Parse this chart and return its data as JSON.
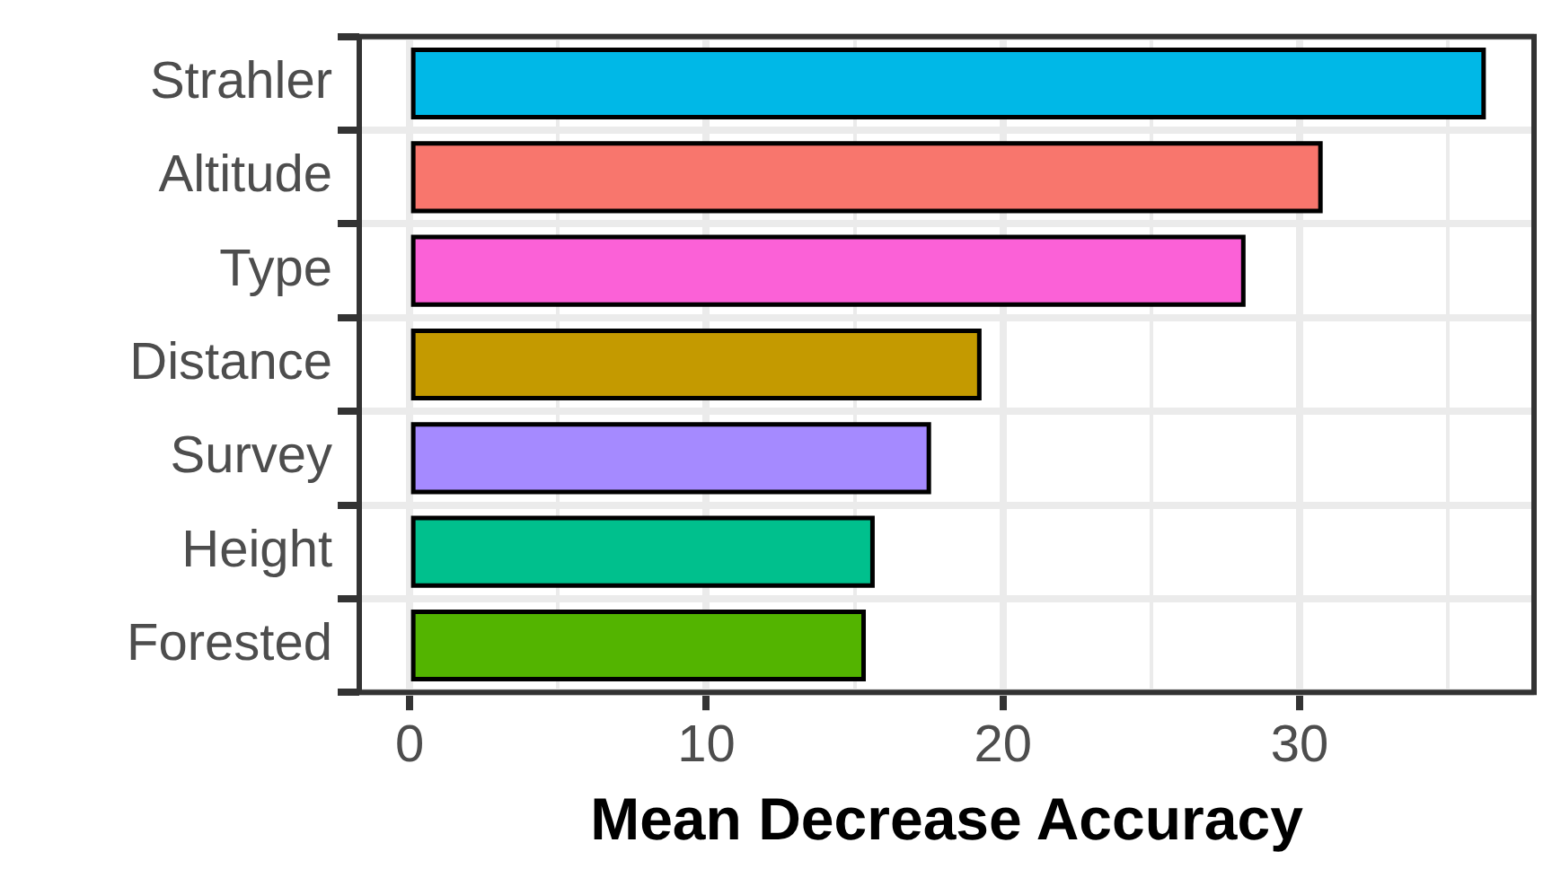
{
  "chart_data": {
    "type": "bar",
    "orientation": "horizontal",
    "xlabel": "Mean Decrease Accuracy",
    "categories": [
      "Strahler",
      "Altitude",
      "Type",
      "Distance",
      "Survey",
      "Height",
      "Forested"
    ],
    "values": [
      36.2,
      30.7,
      28.1,
      19.2,
      17.5,
      15.6,
      15.3
    ],
    "colors": [
      "#00b8e7",
      "#f8766d",
      "#fb61d7",
      "#c49a00",
      "#a58aff",
      "#00c08d",
      "#53b400"
    ],
    "xlim": [
      -1.7,
      37.9
    ],
    "xticks": [
      0,
      {
        "value": 5,
        "label": null
      },
      10,
      {
        "value": 15,
        "label": null
      },
      20,
      {
        "value": 25,
        "label": null
      },
      30,
      {
        "value": 35,
        "label": null
      }
    ],
    "grid": true,
    "legend": false
  }
}
